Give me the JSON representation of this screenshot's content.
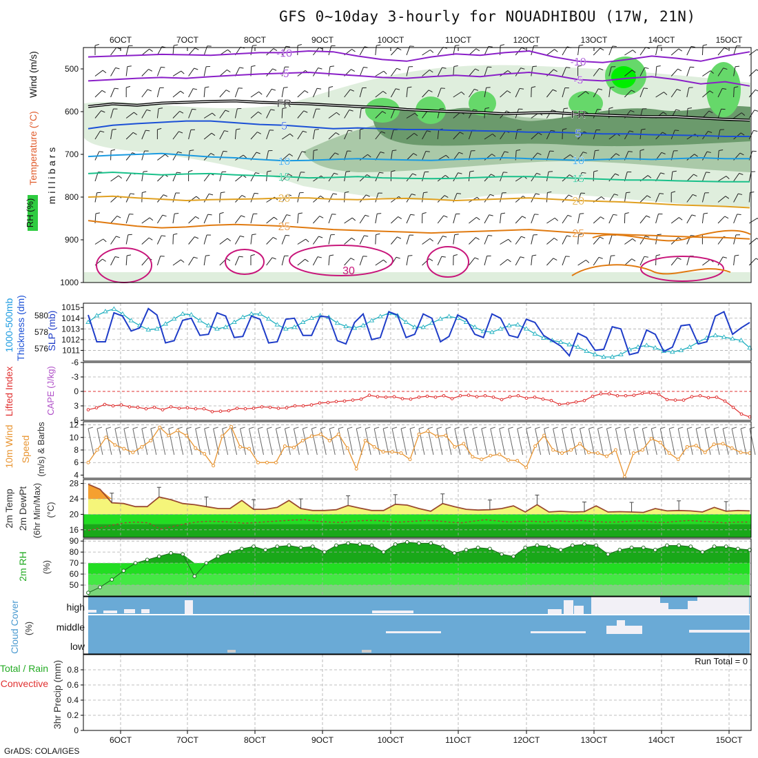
{
  "title": "GFS 0~10day 3-hourly for NOUADHIBOU (17W, 21N)",
  "footer": "GrADS: COLA/IGES",
  "run_total": "Run Total = 0",
  "colors": {
    "rh_light": "#dfeedd",
    "rh_mid": "#aac9a8",
    "rh_dark": "#6b9a6c",
    "rh_green": "#66d86a",
    "rh_bright": "#00ee00",
    "purple": "#8a1fc8",
    "black": "#000000",
    "blue": "#1a4fd6",
    "lightblue": "#1a9ae0",
    "teal": "#19c08a",
    "yellow": "#e0a020",
    "orange": "#e07a10",
    "magenta": "#c8157a",
    "slp": "#1e3cc8",
    "thick": "#20b0c0",
    "li": "#e03030",
    "wind10": "#e89430",
    "temp_fill": "#f5f57a",
    "temp_hot": "#f5a030",
    "dew": "#9a4a30",
    "rh_fill_dark": "#19a819",
    "rh_fill_mid": "#22dd22",
    "cloud": "#6aaad6",
    "cloud_gap": "#f2f0f6"
  },
  "chart_data": [
    {
      "type": "heatmap",
      "title": "Upper air: RH (%), Temperature (°C), Wind (m/s)",
      "xlabel": "",
      "ylabel": "millibars",
      "left_labels": [
        "Wind (m/s)",
        "Temperature (°C)",
        "RH (%)"
      ],
      "x_ticks": [
        "6OCT",
        "7OCT",
        "8OCT",
        "9OCT",
        "10OCT",
        "11OCT",
        "12OCT",
        "13OCT",
        "14OCT",
        "15OCT"
      ],
      "y_ticks": [
        500,
        600,
        700,
        800,
        900,
        1000
      ],
      "ylim": [
        450,
        1000
      ],
      "isotherms": [
        {
          "label": "-10",
          "values": [
            472,
            470,
            468,
            466,
            467,
            468,
            465,
            462,
            462,
            458,
            460,
            470,
            478,
            482,
            472,
            465,
            468,
            462,
            458,
            472,
            482,
            485,
            478,
            470,
            475,
            482,
            470,
            460
          ]
        },
        {
          "label": "-5",
          "values": [
            528,
            525,
            522,
            520,
            522,
            518,
            515,
            512,
            510,
            508,
            512,
            516,
            520,
            522,
            518,
            515,
            518,
            512,
            508,
            515,
            525,
            528,
            522,
            518,
            525,
            535,
            530,
            540
          ]
        },
        {
          "label": "FR",
          "values": [
            588,
            582,
            585,
            580,
            578,
            576,
            575,
            578,
            580,
            582,
            585,
            588,
            590,
            595,
            598,
            600,
            602,
            605,
            603,
            602,
            606,
            608,
            610,
            612,
            612,
            615,
            618,
            620
          ]
        },
        {
          "label": "5",
          "values": [
            640,
            632,
            628,
            625,
            622,
            622,
            626,
            630,
            632,
            636,
            640,
            638,
            640,
            642,
            642,
            644,
            645,
            646,
            648,
            648,
            650,
            652,
            652,
            654,
            655,
            656,
            658,
            658
          ]
        },
        {
          "label": "10",
          "values": [
            705,
            702,
            700,
            698,
            702,
            706,
            708,
            712,
            715,
            714,
            712,
            710,
            712,
            713,
            714,
            712,
            710,
            708,
            710,
            712,
            714,
            712,
            710,
            712,
            710,
            708,
            710,
            710
          ]
        },
        {
          "label": "15",
          "values": [
            745,
            742,
            745,
            748,
            746,
            745,
            748,
            750,
            752,
            755,
            754,
            752,
            755,
            756,
            757,
            756,
            754,
            752,
            752,
            754,
            756,
            758,
            760,
            760,
            762,
            763,
            764,
            764
          ]
        },
        {
          "label": "20",
          "values": [
            800,
            798,
            802,
            805,
            808,
            806,
            805,
            804,
            802,
            802,
            805,
            806,
            804,
            803,
            805,
            808,
            806,
            804,
            802,
            805,
            808,
            810,
            812,
            815,
            818,
            820,
            822,
            825
          ]
        },
        {
          "label": "25",
          "values": [
            855,
            862,
            868,
            872,
            870,
            866,
            864,
            866,
            868,
            872,
            876,
            878,
            880,
            882,
            884,
            882,
            880,
            878,
            876,
            880,
            884,
            886,
            888,
            890,
            892,
            894,
            895,
            898
          ]
        }
      ]
    },
    {
      "type": "line",
      "title": "SLP (mb) and 1000-500mb Thickness (dm)",
      "left_labels": [
        "1000-500mb",
        "Thickness (dm)",
        "SLP (mb)"
      ],
      "ylim": [
        1010,
        1015
      ],
      "y_ticks": [
        1011,
        1012,
        1013,
        1014,
        1015
      ],
      "y2_ticks": [
        576,
        578,
        580
      ],
      "series": [
        {
          "name": "SLP",
          "values": [
            1014.3,
            1011.8,
            1011.8,
            1014.5,
            1014.2,
            1012.8,
            1013.1,
            1014.9,
            1014.3,
            1011.7,
            1011.9,
            1013.8,
            1014.0,
            1012.4,
            1012.5,
            1014.5,
            1014.2,
            1012.2,
            1012.3,
            1014.2,
            1013.9,
            1011.7,
            1011.8,
            1013.9,
            1014.0,
            1012.4,
            1012.4,
            1014.2,
            1014.1,
            1011.9,
            1011.6,
            1013.6,
            1014.4,
            1012.0,
            1012.2,
            1014.6,
            1014.3,
            1012.2,
            1012.5,
            1014.4,
            1014.0,
            1011.8,
            1012.3,
            1014.3,
            1013.9,
            1012.5,
            1012.2,
            1014.4,
            1014.0,
            1012.4,
            1012.2,
            1013.9,
            1013.6,
            1012.4,
            1011.9,
            1011.4,
            1010.5,
            1012.6,
            1012.2,
            1011.0,
            1011.1,
            1013.2,
            1013.0,
            1010.6,
            1010.8,
            1012.9,
            1012.5,
            1010.9,
            1011.3,
            1013.3,
            1013.4,
            1011.6,
            1011.8,
            1014.2,
            1014.6,
            1012.5,
            1013.1,
            1013.6
          ]
        },
        {
          "name": "Thickness",
          "values": [
            579.2,
            580.0,
            580.5,
            580.8,
            580.2,
            579.4,
            578.8,
            578.3,
            578.4,
            579.0,
            579.6,
            580.2,
            580.1,
            579.4,
            578.8,
            578.4,
            578.6,
            579.2,
            579.8,
            580.2,
            580.2,
            579.6,
            578.9,
            578.4,
            578.6,
            579.2,
            579.7,
            580.0,
            579.8,
            579.1,
            578.7,
            578.5,
            578.8,
            579.4,
            579.9,
            580.3,
            580.0,
            579.2,
            578.6,
            578.6,
            579.1,
            579.6,
            579.9,
            579.7,
            579.2,
            578.6,
            578.1,
            578.0,
            578.4,
            578.8,
            578.9,
            578.4,
            577.8,
            577.3,
            577.0,
            576.8,
            576.5,
            576.2,
            575.7,
            575.3,
            575.0,
            575.0,
            575.3,
            575.9,
            576.2,
            576.4,
            576.1,
            575.7,
            575.6,
            575.8,
            576.2,
            576.8,
            577.3,
            577.6,
            577.4,
            577.2,
            577.0,
            576.1
          ]
        }
      ]
    },
    {
      "type": "line",
      "title": "Lifted Index / CAPE (J/kg)",
      "left_labels": [
        "Lifted Index",
        "CAPE (J/kg)"
      ],
      "ylim": [
        6,
        -6
      ],
      "y_ticks": [
        -6,
        -3,
        0,
        3,
        6
      ],
      "series": [
        {
          "name": "Lifted Index",
          "values": [
            3.8,
            3.4,
            2.7,
            3.0,
            2.8,
            3.2,
            3.3,
            3.6,
            3.3,
            3.8,
            3.2,
            3.5,
            3.4,
            3.6,
            3.6,
            4.2,
            4.1,
            4.0,
            3.5,
            3.6,
            3.5,
            3.2,
            3.3,
            3.5,
            3.4,
            3.0,
            3.0,
            2.8,
            2.4,
            2.3,
            2.1,
            2.0,
            1.8,
            1.6,
            0.8,
            1.1,
            1.2,
            1.1,
            1.5,
            1.6,
            1.2,
            1.0,
            1.2,
            0.9,
            1.5,
            0.9,
            0.8,
            1.1,
            0.9,
            1.2,
            1.7,
            1.1,
            0.9,
            1.4,
            1.2,
            1.6,
            1.9,
            2.7,
            2.5,
            2.2,
            1.9,
            1.0,
            0.5,
            0.5,
            0.9,
            0.9,
            0.8,
            0.4,
            0.3,
            0.6,
            1.7,
            1.8,
            1.8,
            1.1,
            0.9,
            1.3,
            1.2,
            2.0,
            3.3,
            4.7,
            5.3
          ]
        }
      ]
    },
    {
      "type": "line",
      "title": "10m Wind Speed (m/s) & Barbs",
      "left_labels": [
        "10m Wind",
        "Speed",
        "(m/s) & Barbs"
      ],
      "ylim": [
        3.5,
        12.5
      ],
      "y_ticks": [
        4,
        6,
        8,
        10,
        12
      ],
      "series": [
        {
          "name": "10m Wind Speed",
          "values": [
            6.0,
            8.0,
            10.0,
            8.8,
            8.2,
            7.6,
            8.5,
            9.5,
            11.6,
            10.3,
            11.1,
            10.3,
            8.3,
            7.4,
            5.5,
            10.2,
            11.7,
            8.5,
            8.2,
            6.0,
            6.0,
            6.0,
            8.6,
            8.4,
            9.5,
            10.2,
            10.5,
            9.5,
            10.5,
            8.3,
            5.0,
            9.5,
            8.5,
            7.7,
            7.7,
            7.5,
            6.5,
            10.5,
            11.0,
            10.2,
            10.3,
            8.5,
            9.0,
            6.9,
            6.5,
            7.1,
            7.3,
            6.4,
            6.3,
            5.2,
            8.6,
            10.3,
            8.0,
            7.5,
            8.0,
            9.0,
            7.6,
            7.5,
            7.0,
            8.0,
            3.7,
            7.5,
            8.0,
            9.8,
            9.2,
            7.5,
            6.5,
            8.5,
            8.7,
            7.6,
            8.9,
            9.0,
            8.3,
            7.6,
            7.5
          ]
        }
      ]
    },
    {
      "type": "area",
      "title": "2m Temp / 2m DewPt (°C) (6hr Min/Max)",
      "left_labels": [
        "2m Temp",
        "2m DewPt",
        "(6hr Min/Max)"
      ],
      "ylim": [
        14,
        29
      ],
      "y_ticks": [
        16,
        20,
        24,
        28
      ],
      "series": [
        {
          "name": "2m Temp",
          "values": [
            27.8,
            26.5,
            23.0,
            22.8,
            22.0,
            22.0,
            24.5,
            23.8,
            22.8,
            22.5,
            22.0,
            21.5,
            21.5,
            23.6,
            21.3,
            21.3,
            21.8,
            23.6,
            21.5,
            21.0,
            21.0,
            21.2,
            22.3,
            21.6,
            21.0,
            21.0,
            22.6,
            22.4,
            21.5,
            20.8,
            22.8,
            22.0,
            21.3,
            21.1,
            21.2,
            21.5,
            22.2,
            20.6,
            22.5,
            20.6,
            20.8,
            20.6,
            20.7,
            22.2,
            20.6,
            20.7,
            20.6,
            20.5,
            21.5,
            20.9,
            21.0,
            20.9,
            20.6,
            21.8,
            20.8,
            21.0,
            20.9
          ]
        },
        {
          "name": "2m DewPt",
          "values": [
            15.8,
            16.5,
            17.2,
            17.8,
            18.0,
            17.8,
            16.2,
            16.8,
            17.5,
            18.0,
            18.2,
            18.1,
            18.0,
            17.7,
            17.9,
            18.1,
            18.3,
            18.5,
            18.6,
            18.2,
            18.0,
            17.9,
            18.2,
            18.4,
            18.4,
            18.1,
            18.0,
            18.2,
            18.4,
            18.3,
            18.0,
            17.8,
            18.2,
            18.6,
            18.3,
            18.0,
            18.2,
            18.2,
            18.0,
            18.3,
            18.1,
            18.4,
            18.1,
            18.0,
            18.0,
            18.2,
            18.3,
            18.0,
            17.9,
            18.2,
            18.4,
            18.2,
            18.0,
            17.8,
            18.0,
            18.0
          ]
        }
      ]
    },
    {
      "type": "area",
      "title": "2m RH (%)",
      "left_labels": [
        "2m RH",
        "(%)"
      ],
      "ylim": [
        40,
        92
      ],
      "y_ticks": [
        50,
        60,
        70,
        80,
        90
      ],
      "series": [
        {
          "name": "2m RH",
          "values": [
            43,
            48,
            55,
            63,
            70,
            73,
            76,
            79,
            78,
            58,
            70,
            76,
            80,
            83,
            85,
            82,
            85,
            86,
            84,
            85,
            80,
            86,
            88,
            87,
            86,
            80,
            87,
            89,
            88,
            88,
            85,
            79,
            82,
            84,
            83,
            78,
            76,
            84,
            86,
            85,
            82,
            86,
            87,
            86,
            78,
            82,
            84,
            84,
            82,
            86,
            86,
            85,
            80,
            85,
            85,
            83,
            82
          ]
        }
      ]
    },
    {
      "type": "bar",
      "title": "Cloud Cover (%)",
      "left_labels": [
        "Cloud Cover",
        "(%)"
      ],
      "categories": [
        "high",
        "middle",
        "low"
      ]
    },
    {
      "type": "bar",
      "title": "3hr Precip (mm)",
      "left_labels": [
        "Total / Rain",
        "Convective",
        "3hr Precip (mm)"
      ],
      "ylim": [
        0,
        1
      ],
      "y_ticks": [
        "0",
        "0.2",
        "0.4",
        "0.6",
        "0.8"
      ],
      "values": []
    }
  ]
}
